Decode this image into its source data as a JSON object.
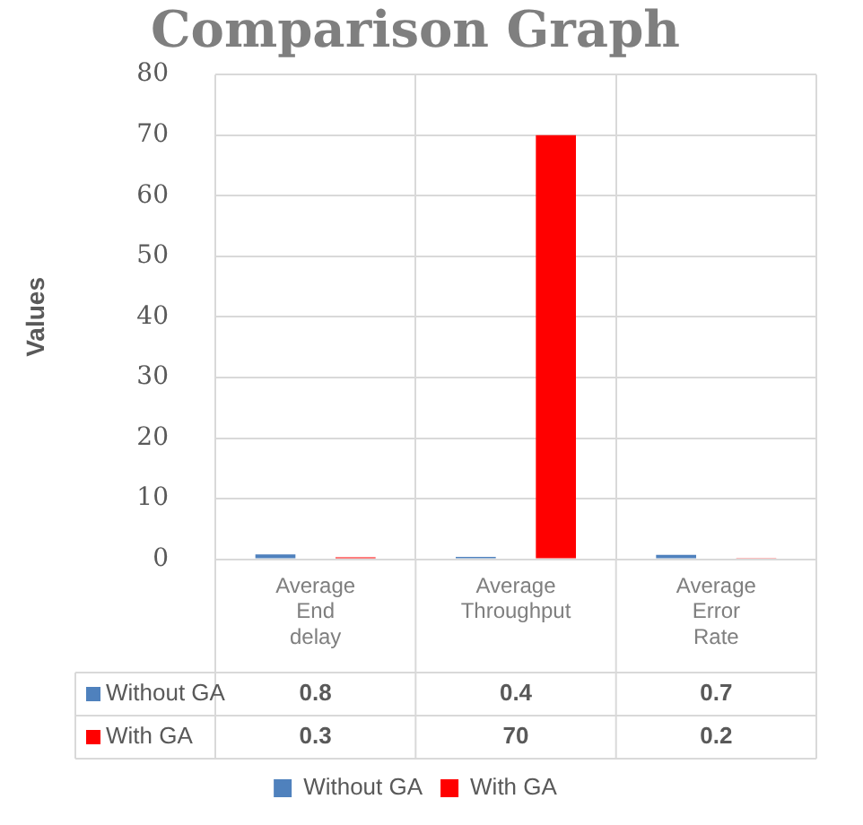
{
  "chart_data": {
    "type": "bar",
    "title": "Comparison Graph",
    "ylabel": "Values",
    "categories": [
      "Average End delay",
      "Average Throughput",
      "Average Error Rate"
    ],
    "series": [
      {
        "name": "Without GA",
        "color": "#4f81bd",
        "values": [
          0.8,
          0.4,
          0.7
        ]
      },
      {
        "name": "With GA",
        "color": "#ff0000",
        "values": [
          0.3,
          70,
          0.2
        ]
      }
    ],
    "ylim": [
      0,
      80
    ],
    "yticks": [
      0,
      10,
      20,
      30,
      40,
      50,
      60,
      70,
      80
    ],
    "grid": true,
    "legend": "bottom",
    "data_labels": true
  }
}
